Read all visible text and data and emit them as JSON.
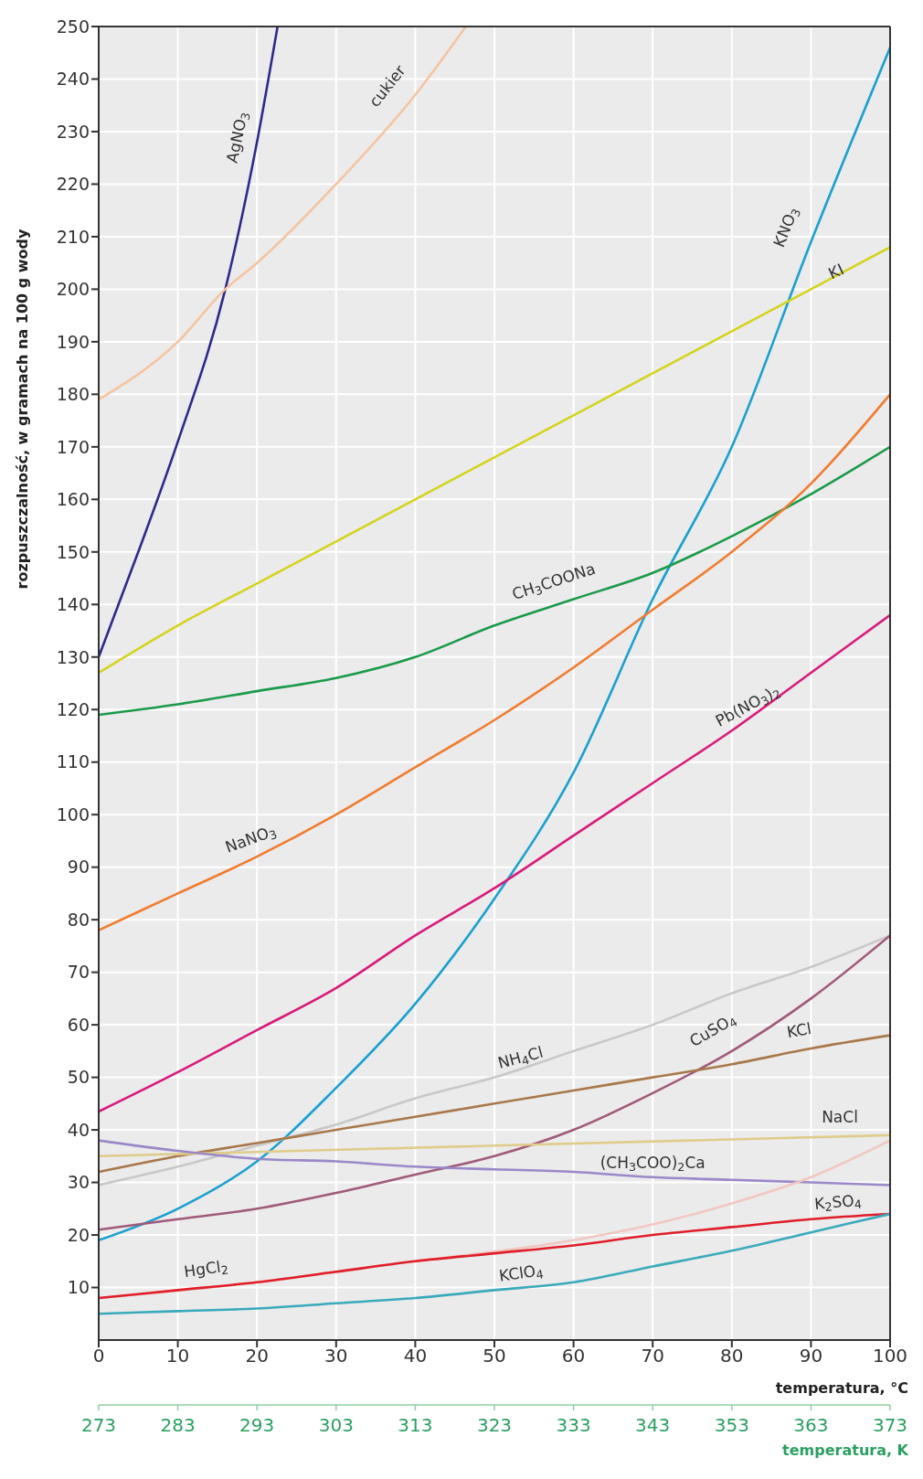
{
  "chart_data": {
    "type": "line",
    "xlabel": "temperatura, °C",
    "ylabel": "rozpuszczalność, w gramach na 100 g wody",
    "x2label": "temperatura, K",
    "x": [
      0,
      10,
      20,
      30,
      40,
      50,
      60,
      70,
      80,
      90,
      100
    ],
    "series": [
      {
        "name": "AgNO$_{3}$",
        "color": "#2e2a8c",
        "x": [
          0,
          5,
          10,
          16,
          20,
          22.6
        ],
        "values": [
          130,
          150,
          171,
          200,
          228,
          250
        ]
      },
      {
        "name": "cukier",
        "color": "#f5c4a0",
        "x": [
          0,
          10,
          16,
          20,
          30,
          40,
          46.4
        ],
        "values": [
          179,
          190,
          200,
          205,
          220,
          237,
          250
        ]
      },
      {
        "name": "KNO$_{3}$",
        "color": "#1aa0d0",
        "values": [
          19,
          25,
          34,
          48,
          64,
          84,
          108,
          141,
          170,
          209,
          246
        ]
      },
      {
        "name": "KI",
        "color": "#d4d41e",
        "values": [
          127,
          136,
          144,
          152,
          160,
          168,
          176,
          184,
          192,
          200,
          208
        ]
      },
      {
        "name": "CH$_{3}$COONa",
        "color": "#1a9a4a",
        "values": [
          119,
          121,
          123.5,
          126,
          130,
          136,
          141,
          146,
          153,
          161,
          170
        ]
      },
      {
        "name": "NaNO$_{3}$",
        "color": "#f07c30",
        "values": [
          78,
          85,
          92,
          100,
          109,
          118,
          128,
          139,
          150,
          163,
          180
        ]
      },
      {
        "name": "Pb(NO$_{3}$)$_{2}$",
        "color": "#d81b7a",
        "values": [
          43.5,
          51,
          59,
          67,
          77,
          86,
          96,
          106,
          116,
          127,
          138
        ]
      },
      {
        "name": "NH$_{4}$Cl",
        "color": "#c8c8c8",
        "values": [
          29.5,
          33,
          37,
          41,
          46,
          50,
          55,
          60,
          66,
          71,
          77
        ]
      },
      {
        "name": "CuSO$_{4}$",
        "color": "#a05a7a",
        "values": [
          21,
          23,
          25,
          28,
          31.5,
          35,
          40,
          47,
          55,
          65,
          77
        ]
      },
      {
        "name": "KCl",
        "color": "#a8784a",
        "values": [
          32,
          35,
          37.5,
          40,
          42.5,
          45,
          47.5,
          50,
          52.5,
          55.5,
          58
        ]
      },
      {
        "name": "NaCl",
        "color": "#e0cc8a",
        "x": [
          0,
          50,
          100
        ],
        "values": [
          35,
          37,
          39
        ]
      },
      {
        "name": "(CH$_{3}$COO)$_{2}$Ca",
        "color": "#9a88c8",
        "values": [
          38,
          36,
          34.5,
          34,
          33,
          32.5,
          32,
          31,
          30.5,
          30,
          29.5
        ]
      },
      {
        "name": "HgCl$_{2}$",
        "color": "#f0c8c0",
        "x": [
          0,
          20,
          40,
          60,
          70,
          80,
          90,
          100
        ],
        "values": [
          8,
          11,
          15,
          19,
          22,
          26,
          31,
          38
        ]
      },
      {
        "name": "K$_{2}$SO$_{4}$",
        "color": "#e01e2a",
        "values": [
          8,
          9.5,
          11,
          13,
          15,
          16.5,
          18,
          20,
          21.5,
          23,
          24
        ]
      },
      {
        "name": "KClO$_{4}$",
        "color": "#3aaabb",
        "values": [
          5,
          5.5,
          6,
          7,
          8,
          9.5,
          11,
          14,
          17,
          20.5,
          24
        ]
      }
    ],
    "xlim": [
      0,
      100
    ],
    "xticks": [
      0,
      10,
      20,
      30,
      40,
      50,
      60,
      70,
      80,
      90,
      100
    ],
    "ylim": [
      0,
      250
    ],
    "yticks": [
      10,
      20,
      30,
      40,
      50,
      60,
      70,
      80,
      90,
      100,
      110,
      120,
      130,
      140,
      150,
      160,
      170,
      180,
      190,
      200,
      210,
      220,
      230,
      240,
      250
    ],
    "x2lim": [
      273,
      373
    ],
    "x2ticks": [
      273,
      283,
      293,
      303,
      313,
      323,
      333,
      343,
      353,
      363,
      373
    ],
    "grid": true,
    "legend": false,
    "marker": "none"
  }
}
